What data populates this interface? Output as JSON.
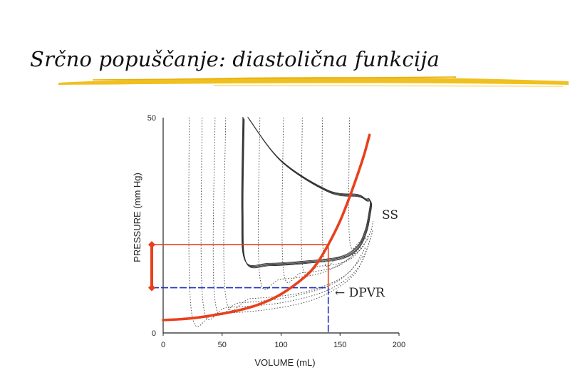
{
  "slide": {
    "title": "Srčno popuščanje: diastolična funkcija",
    "underline_color": "#f0c020"
  },
  "chart_data": {
    "type": "line",
    "title": "",
    "xlabel": "VOLUME  (mL)",
    "ylabel": "PRESSURE (mm Hg)",
    "xlim": [
      0,
      200
    ],
    "ylim": [
      0,
      50
    ],
    "x_ticks": [
      "0",
      "50",
      "100",
      "150",
      "200"
    ],
    "y_ticks": [
      "0",
      "50"
    ],
    "grid": false,
    "colors": {
      "edpvr_curve": "#e8401c",
      "upper_pressure_line": "#e8401c",
      "lower_pressure_line": "#1c2fc0",
      "loops": "#444444"
    },
    "annotations": {
      "steady_state": "SS",
      "dpvr": "← DPVR"
    },
    "edpvr_curve": {
      "x": [
        0,
        20,
        40,
        60,
        80,
        100,
        120,
        130,
        140,
        150,
        160,
        170,
        175
      ],
      "y": [
        3,
        3.3,
        4,
        5,
        6.5,
        9,
        13,
        16,
        20.5,
        26,
        33,
        41,
        46
      ]
    },
    "reference_lines": {
      "upper": {
        "x": 140,
        "y": 20.5
      },
      "lower": {
        "x": 140,
        "y": 10.5
      }
    },
    "steady_state_loop": {
      "x": [
        68,
        67,
        70,
        90,
        120,
        150,
        165,
        172,
        175,
        176,
        175,
        172,
        165,
        140,
        100,
        72
      ],
      "y": [
        50,
        28,
        16.5,
        16,
        16.5,
        17.5,
        20,
        24,
        28,
        30,
        31,
        31,
        32,
        33,
        40,
        50
      ]
    },
    "pressure_loops": [
      {
        "x": [
          22,
          24,
          45,
          90,
          130,
          160,
          172,
          178
        ],
        "y": [
          50,
          5,
          4.5,
          5.5,
          8,
          13,
          19,
          24
        ]
      },
      {
        "x": [
          33,
          34,
          55,
          100,
          140,
          165,
          176
        ],
        "y": [
          50,
          6.5,
          6,
          7,
          10,
          15,
          22
        ]
      },
      {
        "x": [
          44,
          44,
          65,
          110,
          148,
          170
        ],
        "y": [
          50,
          7.5,
          7,
          8.5,
          12,
          18
        ]
      },
      {
        "x": [
          53,
          53,
          75,
          120,
          155,
          172
        ],
        "y": [
          50,
          8.5,
          8,
          9.5,
          13.5,
          20
        ]
      },
      {
        "x": [
          82,
          82,
          100,
          135,
          162
        ],
        "y": [
          50,
          13,
          12.5,
          14,
          18
        ]
      },
      {
        "x": [
          102,
          102,
          118,
          148,
          168
        ],
        "y": [
          50,
          14.5,
          14,
          15.5,
          20
        ]
      },
      {
        "x": [
          118,
          118,
          132,
          158,
          174
        ],
        "y": [
          50,
          16,
          15.5,
          17,
          22
        ]
      },
      {
        "x": [
          135,
          136,
          148,
          166,
          177
        ],
        "y": [
          50,
          18,
          17.5,
          19,
          24
        ]
      },
      {
        "x": [
          158,
          158,
          166,
          175,
          178
        ],
        "y": [
          50,
          22,
          21,
          23,
          26
        ]
      }
    ]
  }
}
